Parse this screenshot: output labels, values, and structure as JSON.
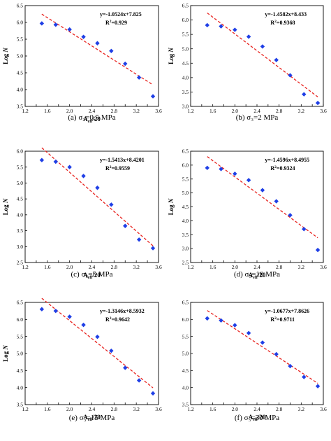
{
  "chart_data": [
    {
      "type": "scatter",
      "caption": "(a) σ₃=0.5 MPa",
      "xlabel_main": "A",
      "xlabel_sub": "eff",
      "xlabel_tail": "/20",
      "ylabel_main": "Log ",
      "ylabel_italic": "N",
      "xlim": [
        1.2,
        3.6
      ],
      "ylim": [
        3.5,
        6.5
      ],
      "xticks": [
        "1.2",
        "1.4",
        "1.6",
        "1.8",
        "2.0",
        "2.2",
        "2.4",
        "2.6",
        "2.8",
        "3.0",
        "3.2",
        "3.4",
        "3.6"
      ],
      "yticks": [
        "3.5",
        "4.0",
        "4.5",
        "5.0",
        "5.5",
        "6.0",
        "6.5"
      ],
      "ytick_values": [
        3.5,
        4.0,
        4.5,
        5.0,
        5.5,
        6.0,
        6.5
      ],
      "x": [
        1.5,
        1.75,
        2.0,
        2.25,
        2.5,
        2.75,
        3.0,
        3.25,
        3.5
      ],
      "y": [
        5.97,
        5.93,
        5.79,
        5.57,
        5.38,
        5.15,
        4.77,
        4.36,
        3.8
      ],
      "equation": "y=-1.0524x+7.825",
      "r2_label": "R",
      "r2_value": "=0.929",
      "fit": {
        "slope": -1.0524,
        "intercept": 7.825,
        "x_range": [
          1.5,
          3.5
        ]
      }
    },
    {
      "type": "scatter",
      "caption": "(b) σ₃=2 MPa",
      "xlabel_main": "",
      "xlabel_sub": "",
      "xlabel_tail": "",
      "ylabel_main": "Log ",
      "ylabel_italic": "N",
      "xlim": [
        1.2,
        3.6
      ],
      "ylim": [
        3.0,
        6.5
      ],
      "xticks": [
        "1.2",
        "1.4",
        "1.6",
        "1.8",
        "2.0",
        "2.2",
        "2.4",
        "2.6",
        "2.8",
        "3.0",
        "3.2",
        "3.4",
        "3.6"
      ],
      "yticks": [
        "3.0",
        "3.5",
        "4.0",
        "4.5",
        "5.0",
        "5.5",
        "6.0",
        "6.5"
      ],
      "ytick_values": [
        3.0,
        3.5,
        4.0,
        4.5,
        5.0,
        5.5,
        6.0,
        6.5
      ],
      "x": [
        1.5,
        1.75,
        2.0,
        2.25,
        2.5,
        2.75,
        3.0,
        3.25,
        3.5
      ],
      "y": [
        5.82,
        5.78,
        5.66,
        5.42,
        5.08,
        4.61,
        4.08,
        3.42,
        3.12
      ],
      "equation": "y=-1.4582x+8.433",
      "r2_label": "R",
      "r2_value": "=0.9368",
      "fit": {
        "slope": -1.4582,
        "intercept": 8.433,
        "x_range": [
          1.5,
          3.5
        ]
      }
    },
    {
      "type": "scatter",
      "caption": "(c) σ₃=5 MPa",
      "xlabel_main": "A",
      "xlabel_sub": "eff",
      "xlabel_tail": "/20",
      "ylabel_main": "Log ",
      "ylabel_italic": "N",
      "xlim": [
        1.2,
        3.6
      ],
      "ylim": [
        2.5,
        6.0
      ],
      "xticks": [
        "1.2",
        "1.4",
        "1.6",
        "1.8",
        "2.0",
        "2.2",
        "2.4",
        "2.6",
        "2.8",
        "3.0",
        "3.2",
        "3.4",
        "3.6"
      ],
      "yticks": [
        "2.5",
        "3.0",
        "3.5",
        "4.0",
        "4.5",
        "5.0",
        "5.5",
        "6.0"
      ],
      "ytick_values": [
        2.5,
        3.0,
        3.5,
        4.0,
        4.5,
        5.0,
        5.5,
        6.0
      ],
      "x": [
        1.5,
        1.75,
        2.0,
        2.25,
        2.5,
        2.75,
        3.0,
        3.25,
        3.5
      ],
      "y": [
        5.72,
        5.67,
        5.5,
        5.22,
        4.85,
        4.32,
        3.65,
        3.22,
        2.95
      ],
      "equation": "y=-1.5413x+8.4201",
      "r2_label": "R",
      "r2_value": "=0.9559",
      "fit": {
        "slope": -1.5413,
        "intercept": 8.4201,
        "x_range": [
          1.5,
          3.5
        ]
      }
    },
    {
      "type": "scatter",
      "caption": "(d) σ₃=10 MPa",
      "xlabel_main": "A",
      "xlabel_sub": "eff",
      "xlabel_tail": "/20",
      "ylabel_main": "Log ",
      "ylabel_italic": "N",
      "xlim": [
        1.2,
        3.6
      ],
      "ylim": [
        2.5,
        6.5
      ],
      "xticks": [
        "1.2",
        "1.4",
        "1.6",
        "1.8",
        "2.0",
        "2.2",
        "2.4",
        "2.6",
        "2.8",
        "3.0",
        "3.2",
        "3.4",
        "3.6"
      ],
      "yticks": [
        "2.5",
        "3.0",
        "3.5",
        "4.0",
        "4.5",
        "5.0",
        "5.5",
        "6.0",
        "6.5"
      ],
      "ytick_values": [
        2.5,
        3.0,
        3.5,
        4.0,
        4.5,
        5.0,
        5.5,
        6.0,
        6.5
      ],
      "x": [
        1.5,
        1.75,
        2.0,
        2.25,
        2.5,
        2.75,
        3.0,
        3.25,
        3.5
      ],
      "y": [
        5.9,
        5.86,
        5.69,
        5.46,
        5.1,
        4.7,
        4.2,
        3.7,
        2.95
      ],
      "equation": "y=-1.4596x+8.4955",
      "r2_label": "R",
      "r2_value": "=0.9324",
      "fit": {
        "slope": -1.4596,
        "intercept": 8.4955,
        "x_range": [
          1.5,
          3.5
        ]
      }
    },
    {
      "type": "scatter",
      "caption": "(e) σ₃=15 MPa",
      "xlabel_main": "A",
      "xlabel_sub": "eff",
      "xlabel_tail": "/20",
      "ylabel_main": "Log ",
      "ylabel_italic": "N",
      "xlim": [
        1.2,
        3.6
      ],
      "ylim": [
        3.5,
        6.5
      ],
      "xticks": [
        "1.2",
        "1.4",
        "1.6",
        "1.8",
        "2.0",
        "2.2",
        "2.4",
        "2.6",
        "2.8",
        "3.0",
        "3.2",
        "3.4",
        "3.6"
      ],
      "yticks": [
        "3.5",
        "4.0",
        "4.5",
        "5.0",
        "5.5",
        "6.0",
        "6.5"
      ],
      "ytick_values": [
        3.5,
        4.0,
        4.5,
        5.0,
        5.5,
        6.0,
        6.5
      ],
      "x": [
        1.5,
        1.75,
        2.0,
        2.25,
        2.5,
        2.75,
        3.0,
        3.25,
        3.5
      ],
      "y": [
        6.3,
        6.25,
        6.08,
        5.84,
        5.49,
        5.08,
        4.58,
        4.21,
        3.83
      ],
      "equation": "y=-1.3146x+8.5932",
      "r2_label": "R",
      "r2_value": "=0.9642",
      "fit": {
        "slope": -1.3146,
        "intercept": 8.5932,
        "x_range": [
          1.5,
          3.5
        ]
      }
    },
    {
      "type": "scatter",
      "caption": "(f) σ₃=30 MPa",
      "xlabel_main": "A",
      "xlabel_sub": "eff",
      "xlabel_tail": "/20",
      "ylabel_main": "",
      "ylabel_italic": "",
      "xlim": [
        1.2,
        3.6
      ],
      "ylim": [
        3.5,
        6.5
      ],
      "xticks": [
        "1.2",
        "1.4",
        "1.6",
        "1.8",
        "2.0",
        "2.2",
        "2.4",
        "2.6",
        "2.8",
        "3.0",
        "3.2",
        "3.4",
        "3.6"
      ],
      "yticks": [
        "3.5",
        "4.0",
        "4.5",
        "5.0",
        "5.5",
        "6.0",
        "6.5"
      ],
      "ytick_values": [
        3.5,
        4.0,
        4.5,
        5.0,
        5.5,
        6.0,
        6.5
      ],
      "x": [
        1.5,
        1.75,
        2.0,
        2.25,
        2.5,
        2.75,
        3.0,
        3.25,
        3.5
      ],
      "y": [
        6.03,
        5.97,
        5.83,
        5.6,
        5.32,
        4.98,
        4.63,
        4.31,
        4.04
      ],
      "equation": "y=-1.0677x+7.8626",
      "r2_label": "R",
      "r2_value": "=0.9711",
      "fit": {
        "slope": -1.0677,
        "intercept": 7.8626,
        "x_range": [
          1.5,
          3.5
        ]
      }
    }
  ],
  "colors": {
    "marker": "#1f3fe6",
    "fit_line": "#e8231f",
    "axis": "#000000"
  }
}
